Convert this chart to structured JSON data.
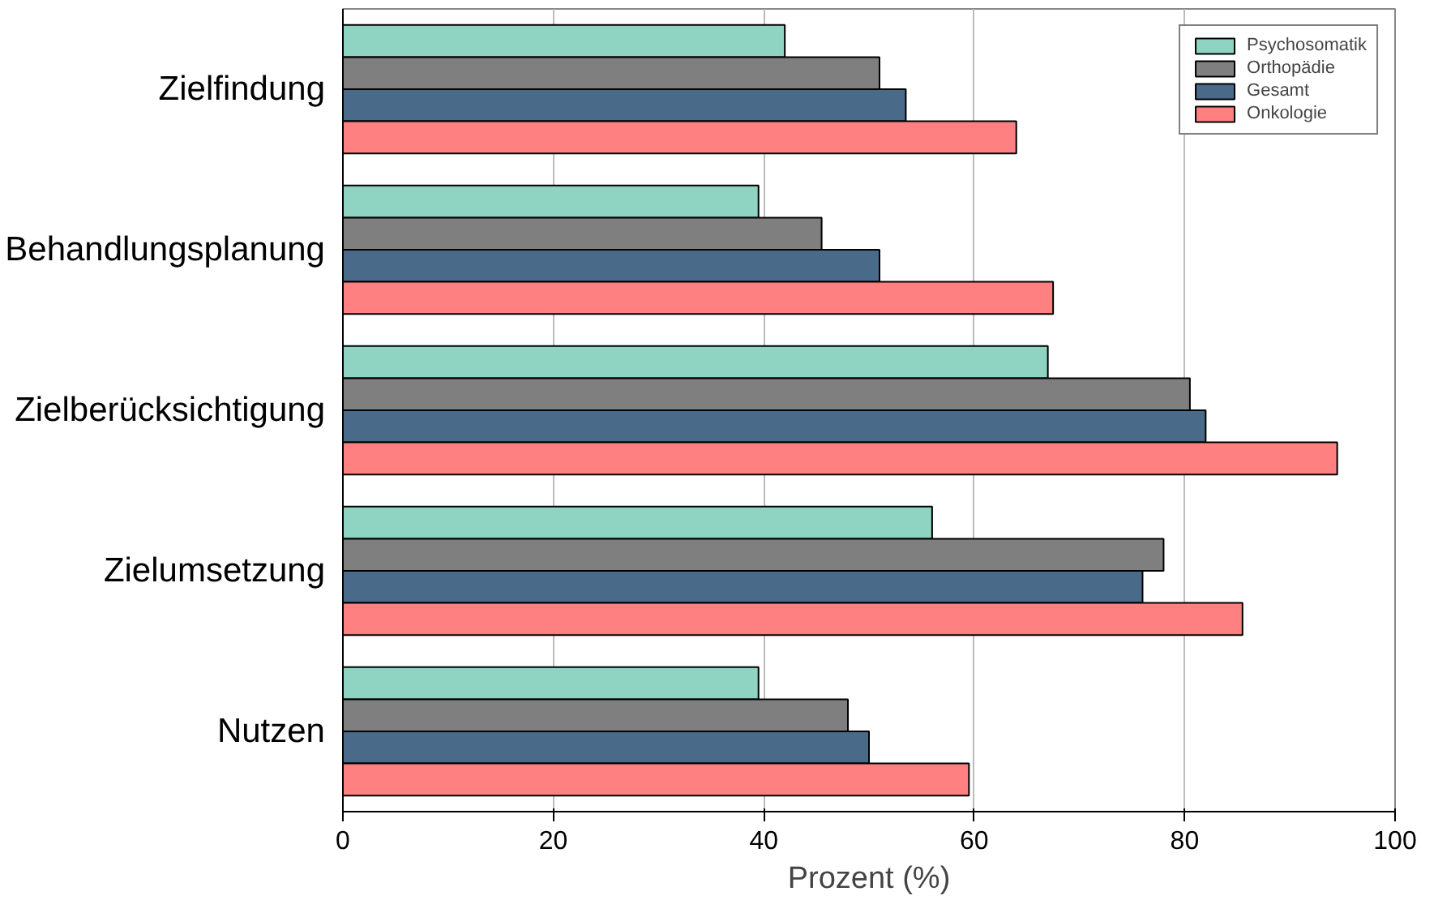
{
  "chart_data": {
    "type": "bar",
    "orientation": "horizontal",
    "xlabel": "Prozent (%)",
    "categories": [
      "Zielfindung",
      "Behandlungsplanung",
      "Zielberücksichtigung",
      "Zielumsetzung",
      "Nutzen"
    ],
    "series": [
      {
        "name": "Psychosomatik",
        "color": "#8fd3c3",
        "values": [
          42,
          39.5,
          67,
          56,
          39.5
        ]
      },
      {
        "name": "Orthopädie",
        "color": "#7f7f7f",
        "values": [
          51,
          45.5,
          80.5,
          78,
          48
        ]
      },
      {
        "name": "Gesamt",
        "color": "#4a6a8a",
        "values": [
          53.5,
          51,
          82,
          76,
          50
        ]
      },
      {
        "name": "Onkologie",
        "color": "#ff8080",
        "values": [
          64,
          67.5,
          94.5,
          85.5,
          59.5
        ]
      }
    ],
    "xlim": [
      0,
      100
    ],
    "xticks": [
      0,
      20,
      40,
      60,
      80,
      100
    ],
    "grid": "x",
    "legend": "top right"
  }
}
